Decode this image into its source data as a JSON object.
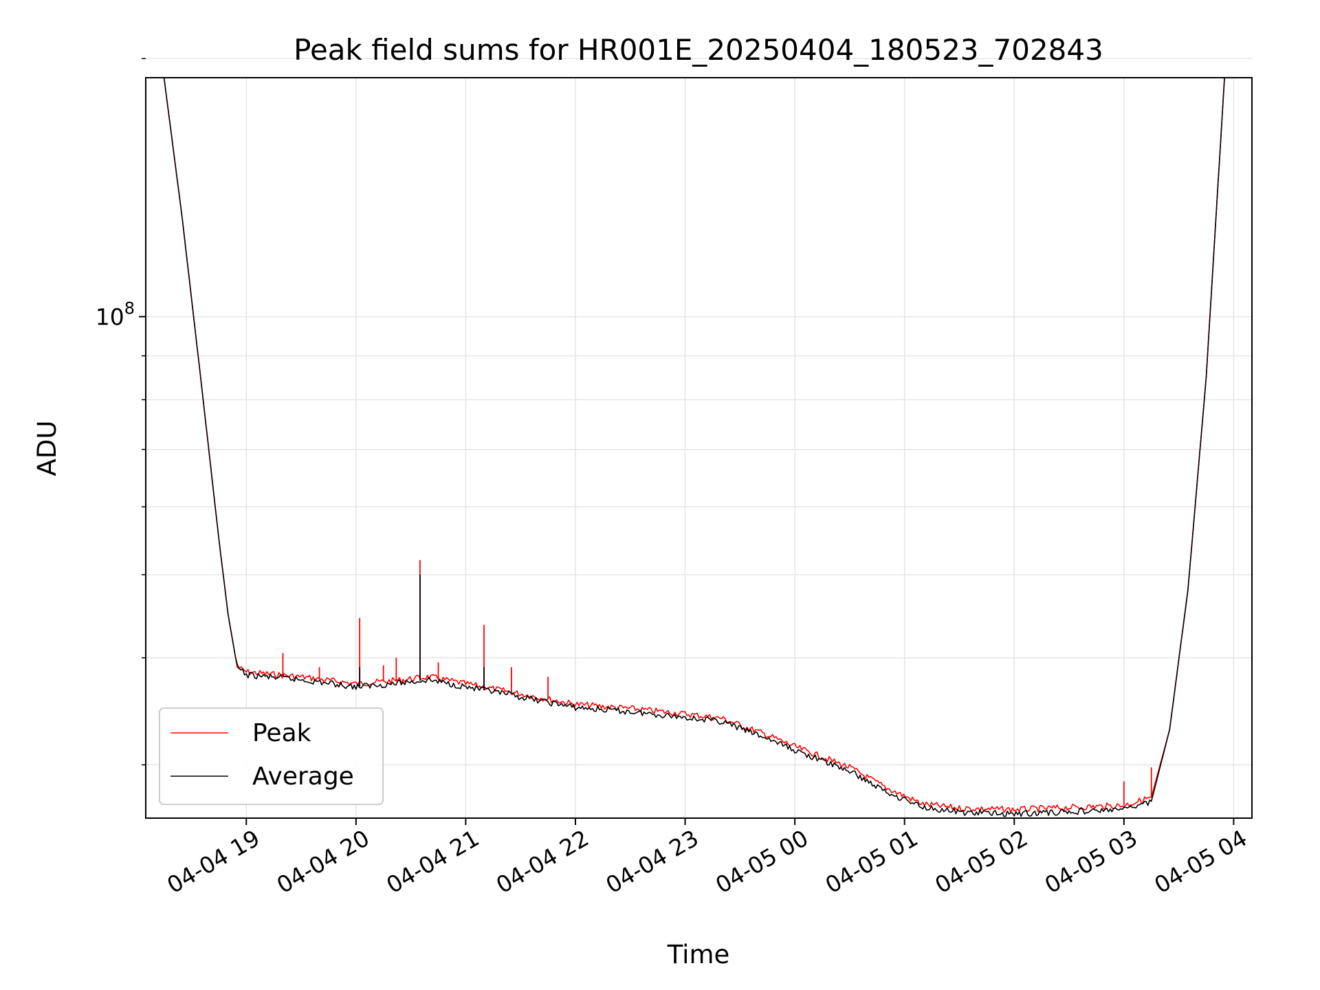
{
  "chart_data": {
    "type": "line",
    "title": "Peak field sums for HR001E_20250404_180523_702843",
    "xlabel": "Time",
    "ylabel": "ADU",
    "yscale": "log",
    "xlim": [
      "04-04 18:05",
      "04-05 04:10"
    ],
    "ylim": [
      26000000,
      190000000
    ],
    "x_ticks": [
      "04-04 19",
      "04-04 20",
      "04-04 21",
      "04-04 22",
      "04-04 23",
      "04-05 00",
      "04-05 01",
      "04-05 02",
      "04-05 03",
      "04-05 04"
    ],
    "y_tick_labels": [
      {
        "value": 100000000,
        "base": "10",
        "exp": "8"
      }
    ],
    "y_minor_ticks": [
      30000000,
      40000000,
      50000000,
      60000000,
      70000000,
      80000000,
      90000000,
      200000000
    ],
    "grid": true,
    "legend_position": "lower-left",
    "series": [
      {
        "name": "Peak",
        "color": "#ff0000",
        "points": [
          [
            "04-04 18:05",
            190000000
          ],
          [
            "04-04 18:15",
            190000000
          ],
          [
            "04-04 18:25",
            130000000
          ],
          [
            "04-04 18:35",
            85000000
          ],
          [
            "04-04 18:45",
            55000000
          ],
          [
            "04-04 18:50",
            45000000
          ],
          [
            "04-04 18:55",
            39000000
          ],
          [
            "04-04 19:00",
            38500000
          ],
          [
            "04-04 19:30",
            38000000
          ],
          [
            "04-04 20:00",
            37300000
          ],
          [
            "04-04 20:20",
            37600000
          ],
          [
            "04-04 20:40",
            38000000
          ],
          [
            "04-04 21:00",
            37300000
          ],
          [
            "04-04 21:30",
            36300000
          ],
          [
            "04-04 22:00",
            35300000
          ],
          [
            "04-04 22:30",
            34900000
          ],
          [
            "04-04 23:00",
            34400000
          ],
          [
            "04-04 23:20",
            34000000
          ],
          [
            "04-04 23:45",
            32500000
          ],
          [
            "04-05 00:00",
            31500000
          ],
          [
            "04-05 00:30",
            29800000
          ],
          [
            "04-05 00:50",
            28200000
          ],
          [
            "04-05 01:10",
            27000000
          ],
          [
            "04-05 01:30",
            26700000
          ],
          [
            "04-05 02:00",
            26600000
          ],
          [
            "04-05 02:30",
            26750000
          ],
          [
            "04-05 03:00",
            26900000
          ],
          [
            "04-05 03:15",
            27500000
          ],
          [
            "04-05 03:25",
            33000000
          ],
          [
            "04-05 03:35",
            48000000
          ],
          [
            "04-05 03:45",
            85000000
          ],
          [
            "04-05 03:55",
            190000000
          ],
          [
            "04-05 04:00",
            190000000
          ]
        ],
        "spikes": [
          [
            "04-04 19:20",
            40500000
          ],
          [
            "04-04 19:40",
            39000000
          ],
          [
            "04-04 20:02",
            44500000
          ],
          [
            "04-04 20:15",
            39200000
          ],
          [
            "04-04 20:22",
            40000000
          ],
          [
            "04-04 20:35",
            52000000
          ],
          [
            "04-04 20:45",
            39500000
          ],
          [
            "04-04 21:10",
            43700000
          ],
          [
            "04-04 21:25",
            39000000
          ],
          [
            "04-04 21:45",
            38000000
          ],
          [
            "04-05 03:00",
            28700000
          ],
          [
            "04-05 03:15",
            29800000
          ]
        ]
      },
      {
        "name": "Average",
        "color": "#000000",
        "points": [
          [
            "04-04 18:05",
            190000000
          ],
          [
            "04-04 18:15",
            190000000
          ],
          [
            "04-04 18:25",
            130000000
          ],
          [
            "04-04 18:35",
            85000000
          ],
          [
            "04-04 18:45",
            55000000
          ],
          [
            "04-04 18:50",
            45000000
          ],
          [
            "04-04 18:55",
            39000000
          ],
          [
            "04-04 19:00",
            38200000
          ],
          [
            "04-04 19:30",
            37700000
          ],
          [
            "04-04 20:00",
            37000000
          ],
          [
            "04-04 20:20",
            37300000
          ],
          [
            "04-04 20:40",
            37700000
          ],
          [
            "04-04 21:00",
            37000000
          ],
          [
            "04-04 21:30",
            36000000
          ],
          [
            "04-04 22:00",
            35000000
          ],
          [
            "04-04 22:30",
            34600000
          ],
          [
            "04-04 23:00",
            34100000
          ],
          [
            "04-04 23:20",
            33700000
          ],
          [
            "04-04 23:45",
            32200000
          ],
          [
            "04-05 00:00",
            31200000
          ],
          [
            "04-05 00:30",
            29500000
          ],
          [
            "04-05 00:50",
            27900000
          ],
          [
            "04-05 01:10",
            26800000
          ],
          [
            "04-05 01:30",
            26400000
          ],
          [
            "04-05 02:00",
            26300000
          ],
          [
            "04-05 02:30",
            26450000
          ],
          [
            "04-05 03:00",
            26600000
          ],
          [
            "04-05 03:15",
            27200000
          ],
          [
            "04-05 03:25",
            33000000
          ],
          [
            "04-05 03:35",
            48000000
          ],
          [
            "04-05 03:45",
            85000000
          ],
          [
            "04-05 03:55",
            190000000
          ],
          [
            "04-05 04:00",
            190000000
          ]
        ],
        "spikes": [
          [
            "04-04 20:02",
            39000000
          ],
          [
            "04-04 20:35",
            50000000
          ],
          [
            "04-04 21:10",
            39000000
          ]
        ]
      }
    ]
  }
}
